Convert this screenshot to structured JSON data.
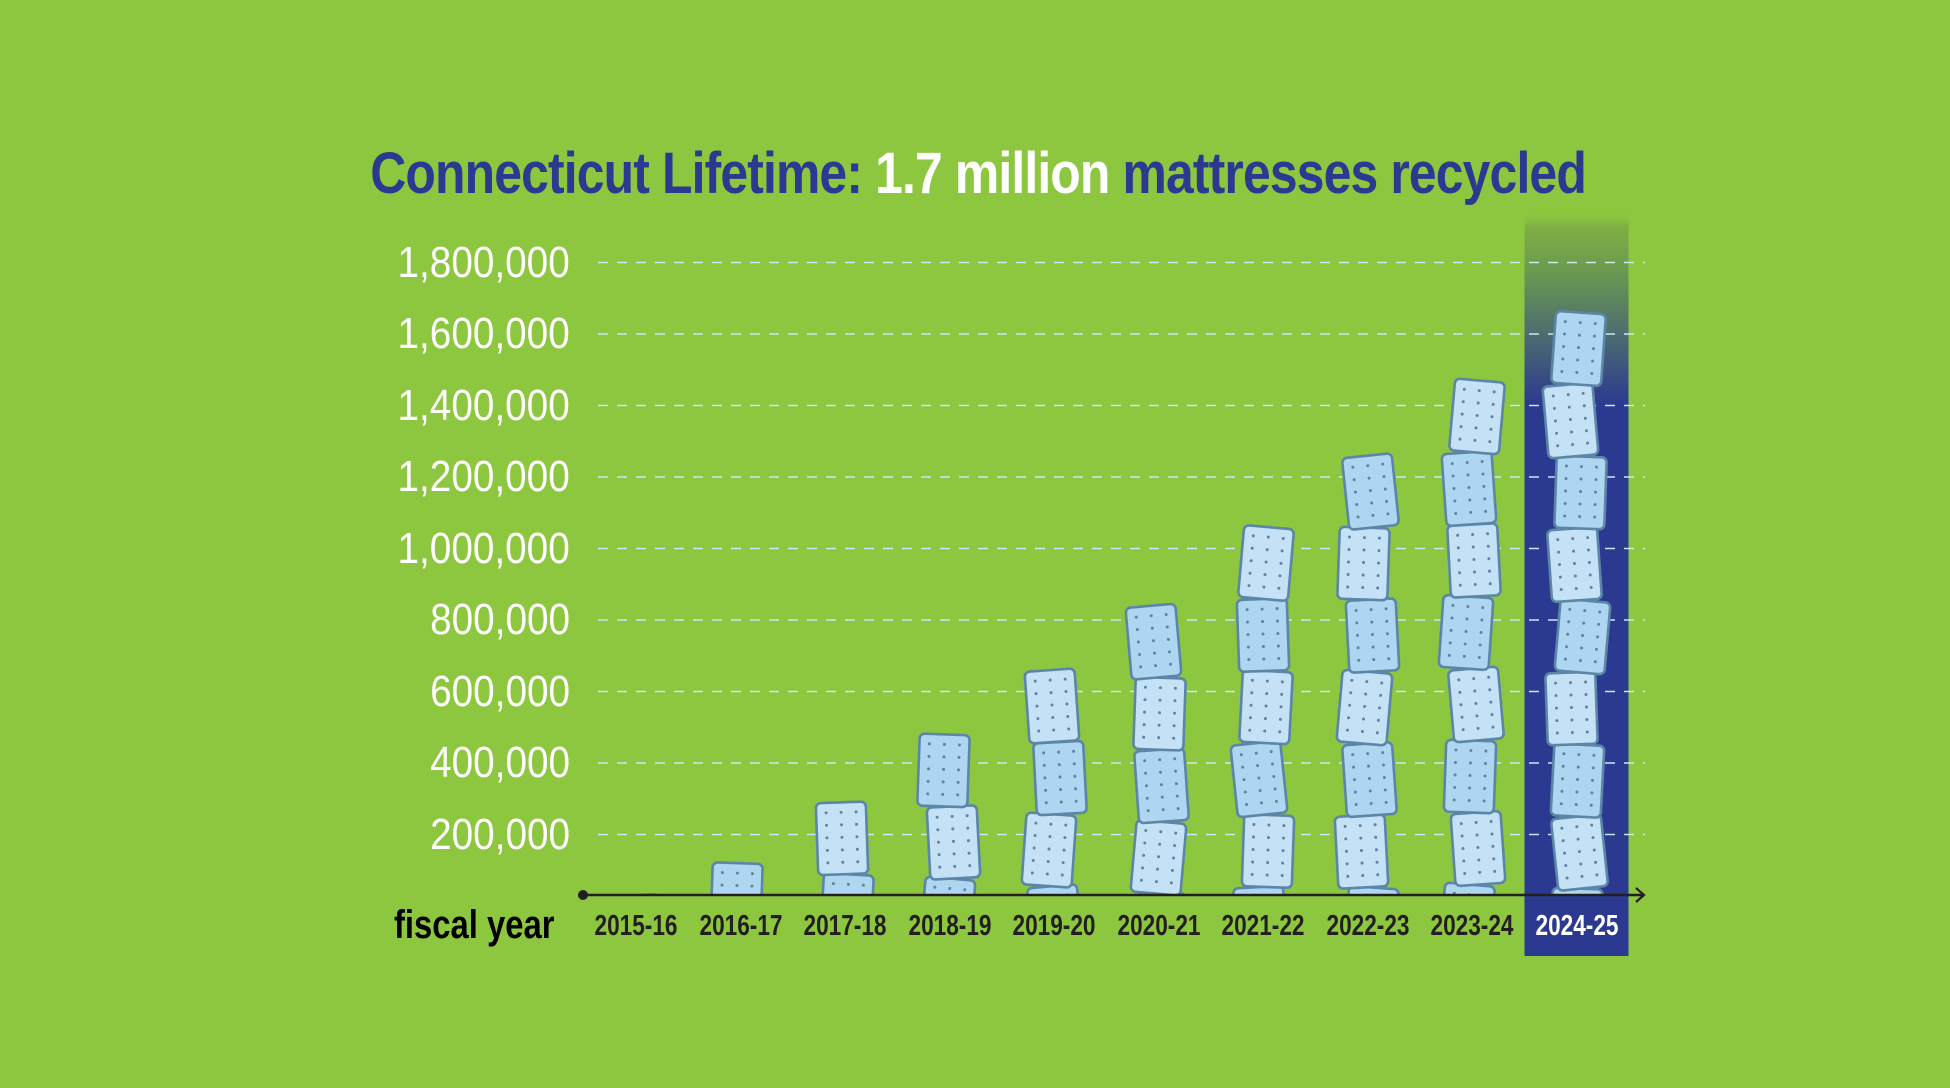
{
  "chart_data": {
    "type": "bar",
    "title": {
      "parts": [
        {
          "text": "Connecticut Lifetime: ",
          "style": "blue"
        },
        {
          "text": "1.7 million",
          "style": "white"
        },
        {
          "text": " mattresses recycled",
          "style": "blue"
        }
      ]
    },
    "xlabel": "fiscal year",
    "ylabel": "",
    "categories": [
      "2015-16",
      "2016-17",
      "2017-18",
      "2018-19",
      "2019-20",
      "2020-21",
      "2021-22",
      "2022-23",
      "2023-24",
      "2024-25"
    ],
    "values": [
      30000,
      120000,
      290000,
      480000,
      660000,
      840000,
      1060000,
      1260000,
      1470000,
      1660000
    ],
    "ylim": [
      0,
      1800000
    ],
    "yticks": [
      200000,
      400000,
      600000,
      800000,
      1000000,
      1200000,
      1400000,
      1600000,
      1800000
    ],
    "ytick_labels": [
      "200,000",
      "400,000",
      "600,000",
      "800,000",
      "1,000,000",
      "1,200,000",
      "1,400,000",
      "1,600,000",
      "1,800,000"
    ],
    "grid": true,
    "highlight_category": "2024-25",
    "mark_style": "stacked mattress icons",
    "colors": {
      "background": "#8dc63f",
      "title_blue": "#2b3990",
      "highlight": "#2b3990",
      "mattress_light": "#c5e1f5",
      "mattress_mid": "#aed6f1",
      "mattress_edge": "#5b86a8",
      "grid": "#cde6f0",
      "axis": "#231f20"
    }
  }
}
